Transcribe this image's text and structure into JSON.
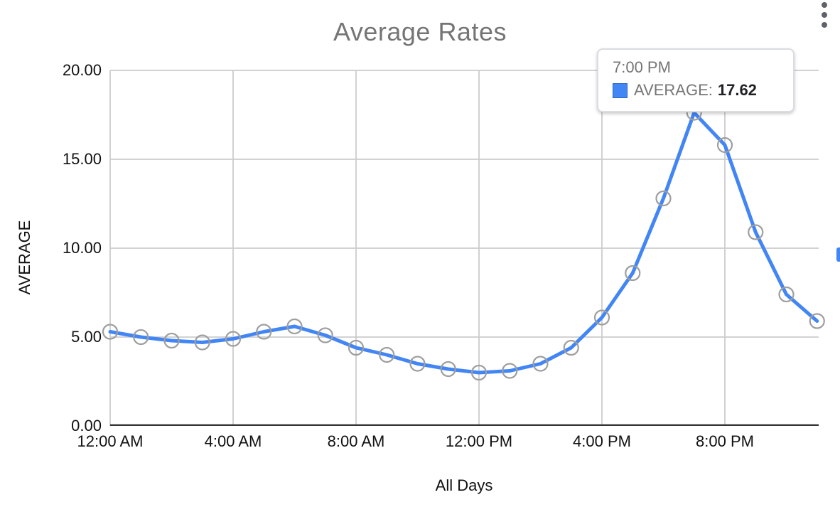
{
  "title": "Average Rates",
  "icons": {
    "more_options": "kebab-menu-vertical-dots"
  },
  "chart_data": {
    "type": "line",
    "title": "Average Rates",
    "xlabel": "All Days",
    "ylabel": "AVERAGE",
    "categories": [
      "12:00 AM",
      "1:00 AM",
      "2:00 AM",
      "3:00 AM",
      "4:00 AM",
      "5:00 AM",
      "6:00 AM",
      "7:00 AM",
      "8:00 AM",
      "9:00 AM",
      "10:00 AM",
      "11:00 AM",
      "12:00 PM",
      "1:00 PM",
      "2:00 PM",
      "3:00 PM",
      "4:00 PM",
      "5:00 PM",
      "6:00 PM",
      "7:00 PM",
      "8:00 PM",
      "9:00 PM",
      "10:00 PM",
      "11:00 PM"
    ],
    "series": [
      {
        "name": "AVERAGE",
        "values": [
          5.3,
          5.0,
          4.8,
          4.7,
          4.9,
          5.3,
          5.6,
          5.1,
          4.4,
          4.0,
          3.5,
          3.2,
          3.0,
          3.1,
          3.5,
          4.4,
          6.1,
          8.6,
          12.8,
          17.62,
          15.8,
          10.9,
          7.4,
          5.9
        ]
      }
    ],
    "x_ticks": [
      {
        "hour": 0,
        "label": "12:00 AM"
      },
      {
        "hour": 4,
        "label": "4:00 AM"
      },
      {
        "hour": 8,
        "label": "8:00 AM"
      },
      {
        "hour": 12,
        "label": "12:00 PM"
      },
      {
        "hour": 16,
        "label": "4:00 PM"
      },
      {
        "hour": 20,
        "label": "8:00 PM"
      }
    ],
    "y_ticks": [
      {
        "value": 0,
        "label": "0.00"
      },
      {
        "value": 5,
        "label": "5.00"
      },
      {
        "value": 10,
        "label": "10.00"
      },
      {
        "value": 15,
        "label": "15.00"
      },
      {
        "value": 20,
        "label": "20.00"
      }
    ],
    "ylim": [
      0,
      20
    ],
    "grid": true,
    "legend_position": "none",
    "marker_style": "open-circle"
  },
  "tooltip": {
    "time": "7:00 PM",
    "series_label": "AVERAGE:",
    "value": "17.62"
  },
  "colors": {
    "accent": "#4285f4",
    "marker_ring": "#9e9e9e",
    "gridline": "#cccccc",
    "baseline": "#333333",
    "title_gray": "#757575",
    "axis_text": "#111111",
    "tooltip_label": "#757575",
    "tooltip_value": "#202124",
    "menu_dots": "#5f6368"
  }
}
